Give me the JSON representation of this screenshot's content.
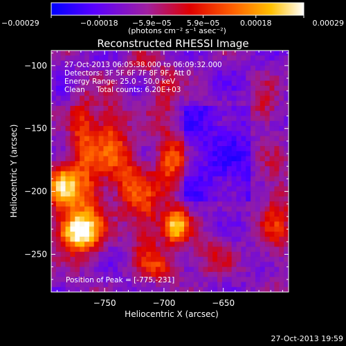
{
  "chart_data": {
    "type": "heatmap",
    "title": "Reconstructed RHESSI Image",
    "xlabel": "Heliocentric X (arcsec)",
    "ylabel": "Heliocentric Y (arcsec)",
    "xlim": [
      -795,
      -595
    ],
    "ylim": [
      -280,
      -88
    ],
    "x_ticks": [
      -750,
      -700,
      -650
    ],
    "x_tick_labels": [
      "−750",
      "−700",
      "−650"
    ],
    "y_ticks": [
      -250,
      -200,
      -150,
      -100
    ],
    "y_tick_labels": [
      "−250",
      "−200",
      "−150",
      "−100"
    ],
    "colorbar": {
      "min": -0.00029,
      "max": 0.00029,
      "ticks": [
        -0.00029,
        -0.00018,
        -5.9e-05,
        5.9e-05,
        0.00018,
        0.00029
      ],
      "tick_labels": [
        "−0.00029",
        "−0.00018",
        "−5.9e−05",
        "5.9e−05",
        "0.00018",
        "0.00029"
      ],
      "unit_label": "(photons cm⁻² s⁻¹ asec⁻²)",
      "colormap": [
        "#0000ff",
        "#5a00ff",
        "#a020a0",
        "#e00000",
        "#ff6000",
        "#ffc000",
        "#ffffff"
      ]
    },
    "annotations": [
      "27-Oct-2013 06:05:38.000 to 06:09:32.000",
      "Detectors: 3F 5F 6F 7F 8F 9F, Att 0",
      "Energy Range: 25.0 - 50.0 keV",
      "Clean     Total counts: 6.20E+03"
    ],
    "peak_label": "Position of Peak = [-775,-231]",
    "peak": {
      "x": -775,
      "y": -231
    },
    "hot_spots": [
      {
        "x": -785,
        "y": -195,
        "sx": 10,
        "sy": 14,
        "amp": 1.0
      },
      {
        "x": -775,
        "y": -232,
        "sx": 12,
        "sy": 10,
        "amp": 1.2
      },
      {
        "x": -768,
        "y": -152,
        "sx": 8,
        "sy": 20,
        "amp": 0.55
      },
      {
        "x": -763,
        "y": -210,
        "sx": 10,
        "sy": 30,
        "amp": 0.6
      },
      {
        "x": -745,
        "y": -155,
        "sx": 9,
        "sy": 22,
        "amp": 0.6
      },
      {
        "x": -730,
        "y": -190,
        "sx": 10,
        "sy": 20,
        "amp": 0.55
      },
      {
        "x": -715,
        "y": -225,
        "sx": 9,
        "sy": 25,
        "amp": 0.5
      },
      {
        "x": -700,
        "y": -120,
        "sx": 8,
        "sy": 15,
        "amp": 0.4
      },
      {
        "x": -695,
        "y": -178,
        "sx": 9,
        "sy": 20,
        "amp": 0.65
      },
      {
        "x": -690,
        "y": -228,
        "sx": 8,
        "sy": 10,
        "amp": 1.0
      },
      {
        "x": -700,
        "y": -260,
        "sx": 12,
        "sy": 8,
        "amp": 0.45
      },
      {
        "x": -660,
        "y": -250,
        "sx": 12,
        "sy": 12,
        "amp": 0.35
      },
      {
        "x": -615,
        "y": -135,
        "sx": 8,
        "sy": 12,
        "amp": 0.4
      },
      {
        "x": -605,
        "y": -220,
        "sx": 10,
        "sy": 30,
        "amp": 0.45
      },
      {
        "x": -720,
        "y": -100,
        "sx": 10,
        "sy": 8,
        "amp": 0.3
      }
    ]
  },
  "timestamp": "27-Oct-2013 19:59"
}
